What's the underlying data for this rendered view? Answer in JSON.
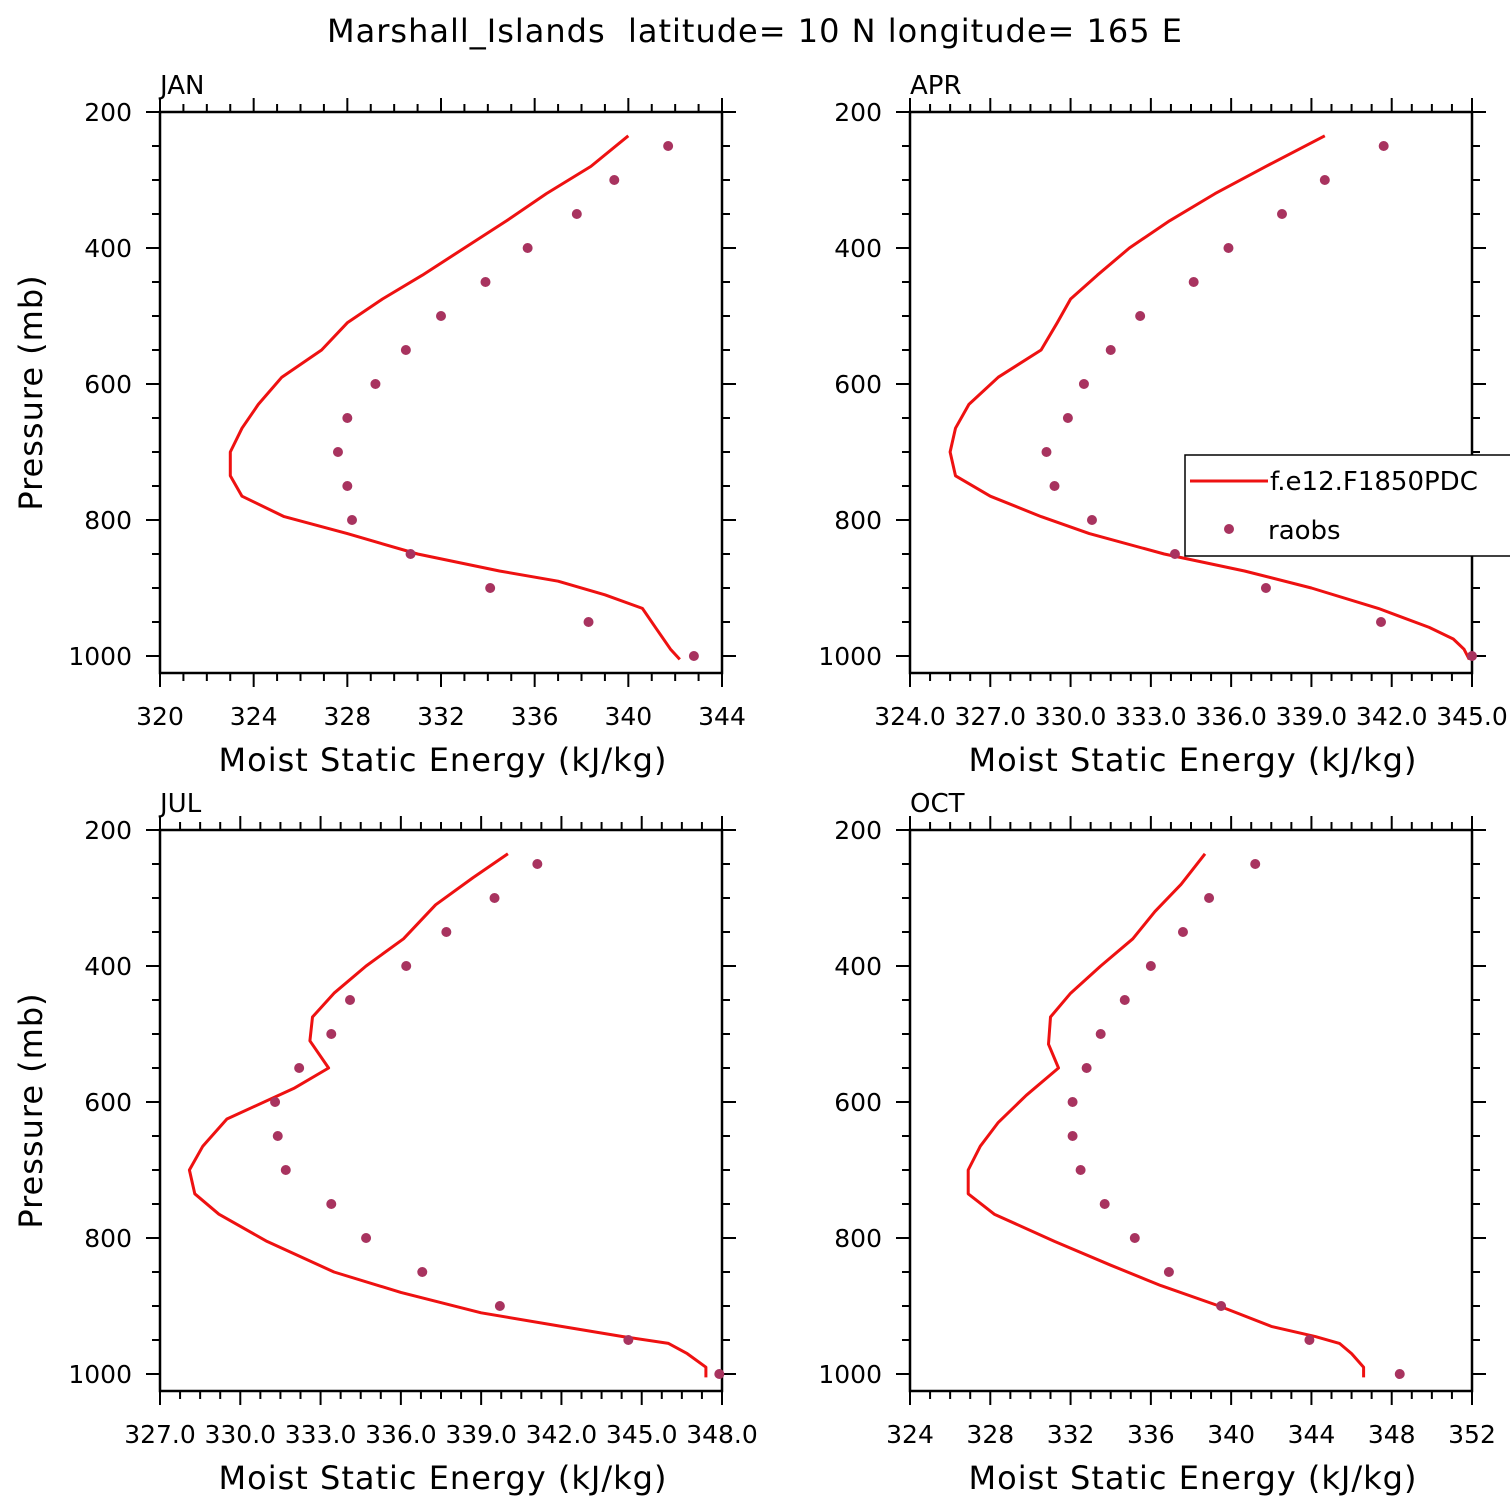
{
  "figure": {
    "title": "Marshall_Islands  latitude= 10 N longitude= 165 E"
  },
  "colors": {
    "model": "#ee1111",
    "obs": "#a8335f",
    "axis": "#000000"
  },
  "legend": {
    "model_label": "f.e12.F1850PDC",
    "obs_label": "raobs"
  },
  "chart_data": [
    {
      "type": "line",
      "panel": "JAN",
      "xlabel": "Moist Static Energy (kJ/kg)",
      "ylabel": "Pressure (mb)",
      "xlim": [
        320,
        344
      ],
      "ylim": [
        1025,
        200
      ],
      "xticks": [
        320,
        324,
        328,
        332,
        336,
        340,
        344
      ],
      "xtick_labels": [
        "320",
        "324",
        "328",
        "332",
        "336",
        "340",
        "344"
      ],
      "yticks": [
        200,
        400,
        600,
        800,
        1000
      ],
      "ytick_labels": [
        "200",
        "400",
        "600",
        "800",
        "1000"
      ],
      "series": [
        {
          "name": "f.e12.F1850PDC",
          "kind": "line",
          "x": [
            342.2,
            341.8,
            341.2,
            340.6,
            339.0,
            337.0,
            334.5,
            331.0,
            328.0,
            325.3,
            323.5,
            323.0,
            323.0,
            323.5,
            324.2,
            325.2,
            326.9,
            328.0,
            329.5,
            331.2,
            333.0,
            334.8,
            336.5,
            338.4,
            340.0
          ],
          "y": [
            1005,
            990,
            960,
            930,
            910,
            890,
            875,
            850,
            820,
            795,
            765,
            735,
            700,
            665,
            630,
            590,
            550,
            510,
            475,
            440,
            400,
            360,
            320,
            280,
            235
          ]
        },
        {
          "name": "raobs",
          "kind": "scatter",
          "x": [
            342.8,
            338.3,
            334.1,
            330.7,
            328.2,
            328.0,
            327.6,
            328.0,
            329.2,
            330.5,
            332.0,
            333.9,
            335.7,
            337.8,
            339.4,
            341.7
          ],
          "y": [
            1000,
            950,
            900,
            850,
            800,
            750,
            700,
            650,
            600,
            550,
            500,
            450,
            400,
            350,
            300,
            250
          ]
        }
      ]
    },
    {
      "type": "line",
      "panel": "APR",
      "xlabel": "Moist Static Energy (kJ/kg)",
      "ylabel": "",
      "xlim": [
        324,
        345
      ],
      "ylim": [
        1025,
        200
      ],
      "xticks": [
        324,
        327,
        330,
        333,
        336,
        339,
        342,
        345
      ],
      "xtick_labels": [
        "324.0",
        "327.0",
        "330.0",
        "333.0",
        "336.0",
        "339.0",
        "342.0",
        "345.0"
      ],
      "yticks": [
        200,
        400,
        600,
        800,
        1000
      ],
      "ytick_labels": [
        "200",
        "400",
        "600",
        "800",
        "1000"
      ],
      "series": [
        {
          "name": "f.e12.F1850PDC",
          "kind": "line",
          "x": [
            344.9,
            344.7,
            344.3,
            343.4,
            341.5,
            339.0,
            336.5,
            333.5,
            330.7,
            328.9,
            327.0,
            325.7,
            325.5,
            325.7,
            326.2,
            327.3,
            328.9,
            329.5,
            330.0,
            331.0,
            332.2,
            333.7,
            335.4,
            337.3,
            339.5
          ],
          "y": [
            1005,
            990,
            975,
            958,
            930,
            900,
            875,
            850,
            820,
            795,
            765,
            735,
            700,
            665,
            630,
            590,
            550,
            510,
            475,
            440,
            400,
            360,
            320,
            280,
            235
          ]
        },
        {
          "name": "raobs",
          "kind": "scatter",
          "x": [
            345.0,
            341.6,
            337.3,
            333.9,
            330.8,
            329.4,
            329.1,
            329.9,
            330.5,
            331.5,
            332.6,
            334.6,
            335.9,
            337.9,
            339.5,
            341.7
          ],
          "y": [
            1000,
            950,
            900,
            850,
            800,
            750,
            700,
            650,
            600,
            550,
            500,
            450,
            400,
            350,
            300,
            250
          ]
        }
      ]
    },
    {
      "type": "line",
      "panel": "JUL",
      "xlabel": "Moist Static Energy (kJ/kg)",
      "ylabel": "Pressure (mb)",
      "xlim": [
        327,
        348
      ],
      "ylim": [
        1025,
        200
      ],
      "xticks": [
        327,
        330,
        333,
        336,
        339,
        342,
        345,
        348
      ],
      "xtick_labels": [
        "327.0",
        "330.0",
        "333.0",
        "336.0",
        "339.0",
        "342.0",
        "345.0",
        "348.0"
      ],
      "yticks": [
        200,
        400,
        600,
        800,
        1000
      ],
      "ytick_labels": [
        "200",
        "400",
        "600",
        "800",
        "1000"
      ],
      "series": [
        {
          "name": "f.e12.F1850PDC",
          "kind": "line",
          "x": [
            347.4,
            347.4,
            346.7,
            346.0,
            344.3,
            342.0,
            339.0,
            336.0,
            333.5,
            331.0,
            329.2,
            328.3,
            328.1,
            328.6,
            329.5,
            332.0,
            333.3,
            332.6,
            332.7,
            333.5,
            334.7,
            336.1,
            337.3,
            338.7,
            340.0
          ],
          "y": [
            1005,
            990,
            970,
            955,
            945,
            930,
            910,
            880,
            850,
            805,
            765,
            735,
            700,
            665,
            625,
            580,
            550,
            510,
            475,
            440,
            400,
            360,
            310,
            270,
            235
          ]
        },
        {
          "name": "raobs",
          "kind": "scatter",
          "x": [
            347.9,
            344.5,
            339.7,
            336.8,
            334.7,
            333.4,
            331.7,
            331.4,
            331.3,
            332.2,
            333.4,
            334.1,
            336.2,
            337.7,
            339.5,
            341.1
          ],
          "y": [
            1000,
            950,
            900,
            850,
            800,
            750,
            700,
            650,
            600,
            550,
            500,
            450,
            400,
            350,
            300,
            250
          ]
        }
      ]
    },
    {
      "type": "line",
      "panel": "OCT",
      "xlabel": "Moist Static Energy (kJ/kg)",
      "ylabel": "",
      "xlim": [
        324,
        352
      ],
      "ylim": [
        1025,
        200
      ],
      "xticks": [
        324,
        328,
        332,
        336,
        340,
        344,
        348,
        352
      ],
      "xtick_labels": [
        "324",
        "328",
        "332",
        "336",
        "340",
        "344",
        "348",
        "352"
      ],
      "yticks": [
        200,
        400,
        600,
        800,
        1000
      ],
      "ytick_labels": [
        "200",
        "400",
        "600",
        "800",
        "1000"
      ],
      "series": [
        {
          "name": "f.e12.F1850PDC",
          "kind": "line",
          "x": [
            346.6,
            346.6,
            346.0,
            345.4,
            344.2,
            342.0,
            339.4,
            336.5,
            334.0,
            331.2,
            328.2,
            326.9,
            326.9,
            327.5,
            328.4,
            329.8,
            331.4,
            330.9,
            331.0,
            332.0,
            333.5,
            335.1,
            336.2,
            337.5,
            338.7
          ],
          "y": [
            1005,
            990,
            970,
            955,
            945,
            930,
            900,
            870,
            840,
            805,
            765,
            735,
            700,
            665,
            630,
            590,
            550,
            515,
            475,
            440,
            400,
            360,
            320,
            280,
            235
          ]
        },
        {
          "name": "raobs",
          "kind": "scatter",
          "x": [
            348.4,
            343.9,
            339.5,
            336.9,
            335.2,
            333.7,
            332.5,
            332.1,
            332.1,
            332.8,
            333.5,
            334.7,
            336.0,
            337.6,
            338.9,
            341.2
          ],
          "y": [
            1000,
            950,
            900,
            850,
            800,
            750,
            700,
            650,
            600,
            550,
            500,
            450,
            400,
            350,
            300,
            250
          ]
        }
      ]
    }
  ]
}
